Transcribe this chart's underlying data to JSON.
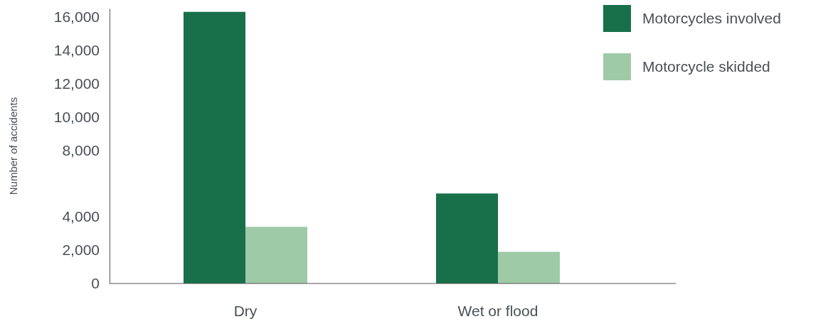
{
  "chart_data": {
    "type": "bar",
    "ylabel": "Number of accidents",
    "categories": [
      "Dry",
      "Wet or flood"
    ],
    "series": [
      {
        "name": "Motorcycles involved",
        "color": "#17704a",
        "values": [
          16300,
          5400
        ]
      },
      {
        "name": "Motorcycle skidded",
        "color": "#9ecaa8",
        "values": [
          3400,
          1900
        ]
      }
    ],
    "ylim": [
      0,
      16500
    ],
    "yticks": [
      0,
      {
        "value": 2000,
        "label": "2,000"
      },
      {
        "value": 4000,
        "label": "4,000"
      },
      {
        "value": 8000,
        "label": "8,000"
      },
      {
        "value": 10000,
        "label": "10,000"
      },
      {
        "value": 12000,
        "label": "12,000"
      },
      {
        "value": 14000,
        "label": "14,000"
      },
      {
        "value": 16000,
        "label": "16,000"
      }
    ],
    "grid": false,
    "legend": "top right"
  }
}
